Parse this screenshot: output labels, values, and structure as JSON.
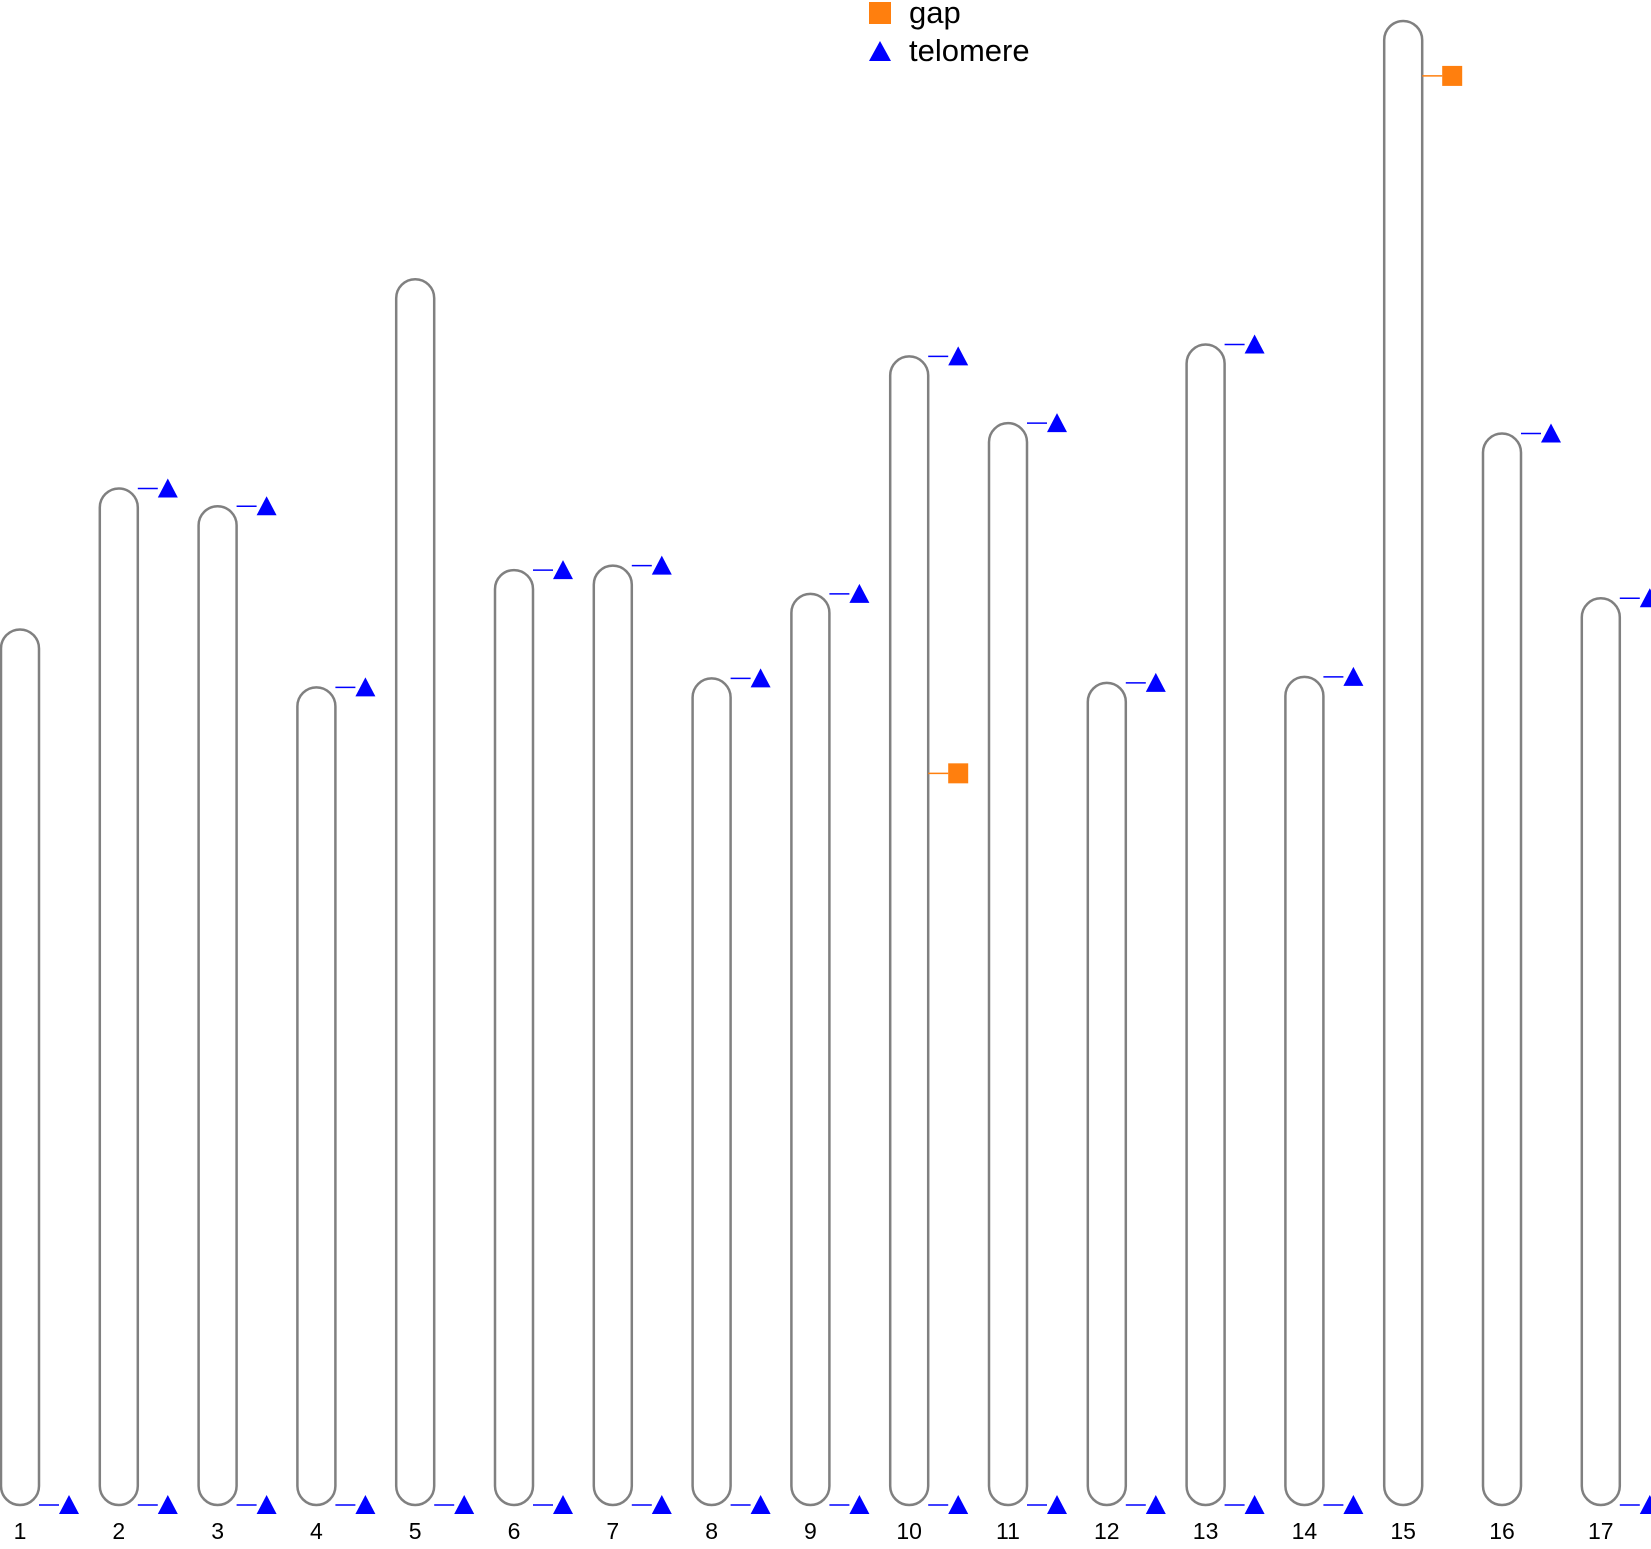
{
  "legend": {
    "items": [
      {
        "label": "gap",
        "shape": "square",
        "color": "#ff7f0e",
        "icon": "square-marker-icon"
      },
      {
        "label": "telomere",
        "shape": "triangle",
        "color": "#0000ff",
        "icon": "triangle-marker-icon"
      }
    ]
  },
  "colors": {
    "chromosome_outline": "#808080",
    "chromosome_fill": "#ffffff",
    "gap": "#ff7f0e",
    "telomere": "#0000ff"
  },
  "chart_data": {
    "type": "ideogram",
    "title": "",
    "chromosomes": [
      {
        "label": "1",
        "length": 0.59,
        "markers": [
          {
            "type": "telomere",
            "pos": 1.0
          }
        ]
      },
      {
        "label": "2",
        "length": 0.685,
        "markers": [
          {
            "type": "telomere",
            "pos": 0.0
          },
          {
            "type": "telomere",
            "pos": 1.0
          }
        ]
      },
      {
        "label": "3",
        "length": 0.673,
        "markers": [
          {
            "type": "telomere",
            "pos": 0.0
          },
          {
            "type": "telomere",
            "pos": 1.0
          }
        ]
      },
      {
        "label": "4",
        "length": 0.551,
        "markers": [
          {
            "type": "telomere",
            "pos": 0.0
          },
          {
            "type": "telomere",
            "pos": 1.0
          }
        ]
      },
      {
        "label": "5",
        "length": 0.826,
        "markers": [
          {
            "type": "telomere",
            "pos": 1.0
          }
        ]
      },
      {
        "label": "6",
        "length": 0.63,
        "markers": [
          {
            "type": "telomere",
            "pos": 0.0
          },
          {
            "type": "telomere",
            "pos": 1.0
          }
        ]
      },
      {
        "label": "7",
        "length": 0.633,
        "markers": [
          {
            "type": "telomere",
            "pos": 0.0
          },
          {
            "type": "telomere",
            "pos": 1.0
          }
        ]
      },
      {
        "label": "8",
        "length": 0.557,
        "markers": [
          {
            "type": "telomere",
            "pos": 0.0
          },
          {
            "type": "telomere",
            "pos": 1.0
          }
        ]
      },
      {
        "label": "9",
        "length": 0.614,
        "markers": [
          {
            "type": "telomere",
            "pos": 0.0
          },
          {
            "type": "telomere",
            "pos": 1.0
          }
        ]
      },
      {
        "label": "10",
        "length": 0.774,
        "markers": [
          {
            "type": "telomere",
            "pos": 0.0
          },
          {
            "type": "gap",
            "pos": 0.363
          },
          {
            "type": "telomere",
            "pos": 1.0
          }
        ]
      },
      {
        "label": "11",
        "length": 0.729,
        "markers": [
          {
            "type": "telomere",
            "pos": 0.0
          },
          {
            "type": "telomere",
            "pos": 1.0
          }
        ]
      },
      {
        "label": "12",
        "length": 0.554,
        "markers": [
          {
            "type": "telomere",
            "pos": 0.0
          },
          {
            "type": "telomere",
            "pos": 1.0
          }
        ]
      },
      {
        "label": "13",
        "length": 0.782,
        "markers": [
          {
            "type": "telomere",
            "pos": 0.0
          },
          {
            "type": "telomere",
            "pos": 1.0
          }
        ]
      },
      {
        "label": "14",
        "length": 0.558,
        "markers": [
          {
            "type": "telomere",
            "pos": 0.0
          },
          {
            "type": "telomere",
            "pos": 1.0
          }
        ]
      },
      {
        "label": "15",
        "length": 1.0,
        "markers": [
          {
            "type": "gap",
            "pos": 0.037
          }
        ]
      },
      {
        "label": "16",
        "length": 0.722,
        "markers": [
          {
            "type": "telomere",
            "pos": 0.0
          }
        ]
      },
      {
        "label": "17",
        "length": 0.611,
        "markers": [
          {
            "type": "telomere",
            "pos": 0.0
          },
          {
            "type": "telomere",
            "pos": 1.0
          }
        ]
      }
    ]
  }
}
